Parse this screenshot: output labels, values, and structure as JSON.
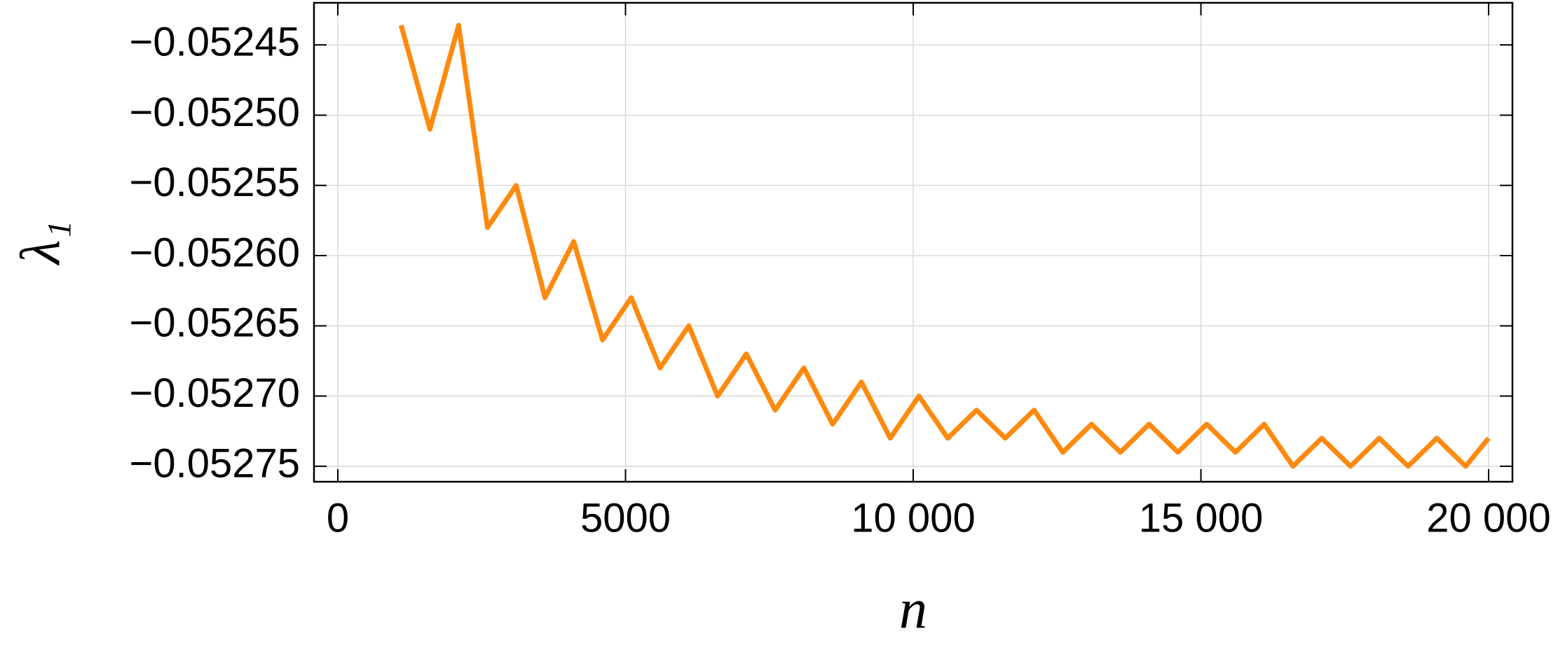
{
  "chart_data": {
    "type": "line",
    "xlabel": "n",
    "ylabel": "λ₁",
    "x": [
      1100,
      1600,
      2100,
      2600,
      3100,
      3600,
      4100,
      4600,
      5100,
      5600,
      6100,
      6600,
      7100,
      7600,
      8100,
      8600,
      9100,
      9600,
      10100,
      10600,
      11100,
      11600,
      12100,
      12600,
      13100,
      13600,
      14100,
      14600,
      15100,
      15600,
      16100,
      16600,
      17100,
      17600,
      18100,
      18600,
      19100,
      19600,
      20000
    ],
    "values": [
      -0.052436,
      -0.05251,
      -0.052436,
      -0.05258,
      -0.05255,
      -0.05263,
      -0.05259,
      -0.05266,
      -0.05263,
      -0.05268,
      -0.05265,
      -0.0527,
      -0.05267,
      -0.05271,
      -0.05268,
      -0.05272,
      -0.05269,
      -0.05273,
      -0.0527,
      -0.05273,
      -0.05271,
      -0.05273,
      -0.05271,
      -0.05274,
      -0.05272,
      -0.05274,
      -0.05272,
      -0.05274,
      -0.05272,
      -0.05274,
      -0.05272,
      -0.05275,
      -0.05273,
      -0.05275,
      -0.05273,
      -0.05275,
      -0.05273,
      -0.05275,
      -0.05273
    ],
    "color": "#fd8a0e",
    "xlim": [
      -414,
      20414
    ],
    "ylim": [
      -0.052761,
      -0.05242
    ],
    "xticks": [
      0,
      5000,
      {
        "value": 10000,
        "label": "10 000"
      },
      {
        "value": 15000,
        "label": "15 000"
      },
      {
        "value": 20000,
        "label": "20 000"
      }
    ],
    "yticks": [
      {
        "value": -0.05245,
        "label": "−0.05245"
      },
      {
        "value": -0.0525,
        "label": "−0.05250"
      },
      {
        "value": -0.05255,
        "label": "−0.05255"
      },
      {
        "value": -0.0526,
        "label": "−0.05260"
      },
      {
        "value": -0.05265,
        "label": "−0.05265"
      },
      {
        "value": -0.0527,
        "label": "−0.05270"
      },
      {
        "value": -0.05275,
        "label": "−0.05275"
      }
    ],
    "grid": true
  }
}
